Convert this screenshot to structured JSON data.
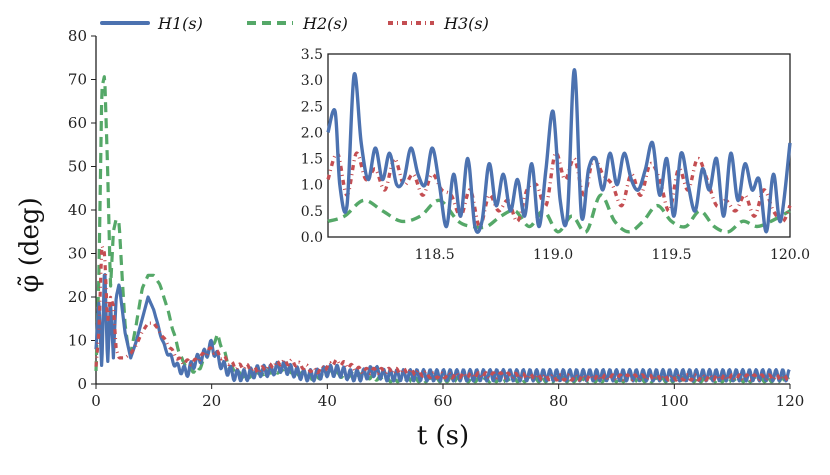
{
  "chart_data": {
    "type": "line",
    "title": "",
    "xlabel": "t (s)",
    "ylabel": "φ̃ (deg)",
    "xlim": [
      0,
      120
    ],
    "ylim": [
      0,
      80
    ],
    "xticks": [
      "0",
      "20",
      "40",
      "60",
      "80",
      "100",
      "120"
    ],
    "yticks": [
      "0",
      "10",
      "20",
      "30",
      "40",
      "50",
      "60",
      "70",
      "80"
    ],
    "legend": {
      "placement": "top",
      "entries": [
        "H1(s)",
        "H2(s)",
        "H3(s)"
      ]
    },
    "series": [
      {
        "name": "H1(s)",
        "color": "#4c72b0",
        "style": "solid",
        "x": [
          0,
          0.5,
          1,
          1.5,
          2,
          2.5,
          3,
          3.5,
          4,
          5,
          6,
          7,
          8,
          9,
          10,
          11,
          12,
          13,
          14,
          15,
          16,
          17,
          18,
          19,
          20,
          21,
          22,
          23,
          24,
          25,
          26,
          28,
          30,
          32,
          34,
          36,
          38,
          40,
          42,
          44,
          46,
          48,
          50,
          55,
          60,
          65,
          70,
          80,
          90,
          100,
          110,
          120
        ],
        "y": [
          8,
          19,
          3,
          28,
          4,
          19,
          6,
          20,
          23,
          12,
          6,
          10,
          15,
          20,
          17,
          12,
          8,
          6,
          4,
          3,
          3,
          5,
          6,
          7,
          9,
          6,
          4,
          3,
          2,
          2,
          2,
          3,
          3,
          4,
          3,
          2,
          2,
          3,
          3,
          2,
          2,
          3,
          2,
          2,
          2,
          2,
          2,
          2,
          2,
          2,
          2,
          2
        ],
        "oscillation_amplitude": 1.3
      },
      {
        "name": "H2(s)",
        "color": "#55a868",
        "style": "dashed",
        "x": [
          0,
          0.5,
          1,
          1.5,
          2,
          2.5,
          3,
          3.5,
          4,
          4.5,
          5,
          5.5,
          6,
          7,
          8,
          9,
          10,
          11,
          12,
          13,
          14,
          15,
          16,
          17,
          18,
          19,
          20,
          21,
          22,
          23,
          25,
          27,
          30,
          32,
          34,
          36,
          38,
          40,
          42,
          44,
          46,
          50,
          55,
          60,
          70,
          80,
          90,
          100,
          110,
          120
        ],
        "y": [
          3,
          25,
          68,
          71,
          50,
          22,
          35,
          38,
          37,
          25,
          14,
          9,
          7,
          14,
          22,
          25,
          25,
          23,
          19,
          14,
          9,
          5,
          4,
          3,
          4,
          6,
          9,
          11,
          8,
          4,
          2,
          2,
          3,
          3,
          3,
          2,
          1,
          3,
          2,
          2,
          2,
          1,
          1,
          1,
          1,
          1,
          1,
          1,
          1,
          1
        ],
        "oscillation_amplitude": 0.5
      },
      {
        "name": "H3(s)",
        "color": "#c44e52",
        "style": "dotted",
        "x": [
          0,
          0.5,
          1,
          1.5,
          2,
          2.5,
          3,
          3.5,
          4,
          5,
          6,
          7,
          8,
          9,
          10,
          11,
          12,
          13,
          14,
          15,
          16,
          17,
          18,
          19,
          20,
          21,
          22,
          23,
          24,
          26,
          28,
          30,
          32,
          34,
          36,
          38,
          40,
          41,
          42,
          44,
          46,
          50,
          54,
          58,
          62,
          70,
          80,
          90,
          100,
          110,
          120
        ],
        "y": [
          4,
          12,
          32,
          30,
          14,
          20,
          18,
          8,
          6,
          6,
          7,
          9,
          12,
          14,
          14,
          12,
          10,
          8,
          6,
          5,
          5,
          5,
          6,
          7,
          8,
          7,
          6,
          5,
          4,
          4,
          3,
          4,
          5,
          5,
          4,
          3,
          4,
          5,
          5,
          4,
          3,
          3,
          3,
          2,
          2,
          2,
          1.5,
          1.5,
          1.5,
          1.5,
          1.5
        ],
        "oscillation_amplitude": 0.6
      }
    ],
    "inset": {
      "type": "line",
      "xlim": [
        118.05,
        120.0
      ],
      "ylim": [
        0,
        3.5
      ],
      "xticks": [
        "118.5",
        "119.0",
        "119.5",
        "120.0"
      ],
      "yticks": [
        "0.0",
        "0.5",
        "1.0",
        "1.5",
        "2.0",
        "2.5",
        "3.0",
        "3.5"
      ],
      "series": [
        {
          "name": "H1(s)",
          "x": [
            118.05,
            118.08,
            118.1,
            118.13,
            118.16,
            118.19,
            118.22,
            118.25,
            118.28,
            118.31,
            118.34,
            118.37,
            118.4,
            118.43,
            118.46,
            118.49,
            118.52,
            118.55,
            118.58,
            118.61,
            118.64,
            118.67,
            118.7,
            118.73,
            118.76,
            118.79,
            118.82,
            118.85,
            118.88,
            118.91,
            118.94,
            118.97,
            119.0,
            119.03,
            119.06,
            119.09,
            119.12,
            119.15,
            119.18,
            119.21,
            119.24,
            119.27,
            119.3,
            119.33,
            119.36,
            119.39,
            119.42,
            119.45,
            119.48,
            119.51,
            119.54,
            119.57,
            119.6,
            119.63,
            119.66,
            119.69,
            119.72,
            119.75,
            119.78,
            119.81,
            119.84,
            119.87,
            119.9,
            119.93,
            119.96,
            120.0
          ],
          "y": [
            2.0,
            2.4,
            1.0,
            0.6,
            3.1,
            1.8,
            1.1,
            1.7,
            1.1,
            1.6,
            1.0,
            1.1,
            1.7,
            1.2,
            1.0,
            1.7,
            1.0,
            0.2,
            1.2,
            0.4,
            1.5,
            0.2,
            0.3,
            1.4,
            0.6,
            1.2,
            0.5,
            1.1,
            0.4,
            1.4,
            0.2,
            1.3,
            2.4,
            0.7,
            0.4,
            3.2,
            0.4,
            1.3,
            1.5,
            0.9,
            1.6,
            1.0,
            1.6,
            1.1,
            0.9,
            1.3,
            1.8,
            0.8,
            1.5,
            0.4,
            1.6,
            1.0,
            0.5,
            1.3,
            0.9,
            1.5,
            0.4,
            1.6,
            0.7,
            1.4,
            0.9,
            1.1,
            0.1,
            1.2,
            0.3,
            1.8
          ]
        },
        {
          "name": "H2(s)",
          "x": [
            118.05,
            118.12,
            118.2,
            118.28,
            118.36,
            118.44,
            118.52,
            118.6,
            118.66,
            118.72,
            118.78,
            118.84,
            118.9,
            118.96,
            119.02,
            119.08,
            119.14,
            119.2,
            119.26,
            119.32,
            119.38,
            119.44,
            119.5,
            119.56,
            119.62,
            119.68,
            119.74,
            119.8,
            119.86,
            119.92,
            120.0
          ],
          "y": [
            0.3,
            0.4,
            0.7,
            0.5,
            0.3,
            0.4,
            0.7,
            0.3,
            0.2,
            0.2,
            0.4,
            0.5,
            0.2,
            0.5,
            0.1,
            0.4,
            0.1,
            0.8,
            0.3,
            0.1,
            0.3,
            0.6,
            0.3,
            0.2,
            0.5,
            0.2,
            0.1,
            0.3,
            0.2,
            0.3,
            0.5
          ]
        },
        {
          "name": "H3(s)",
          "x": [
            118.05,
            118.09,
            118.13,
            118.17,
            118.21,
            118.25,
            118.29,
            118.33,
            118.37,
            118.41,
            118.45,
            118.49,
            118.53,
            118.57,
            118.61,
            118.65,
            118.69,
            118.73,
            118.77,
            118.81,
            118.85,
            118.89,
            118.93,
            118.97,
            119.01,
            119.05,
            119.09,
            119.13,
            119.17,
            119.21,
            119.25,
            119.29,
            119.33,
            119.37,
            119.41,
            119.45,
            119.49,
            119.53,
            119.57,
            119.61,
            119.65,
            119.69,
            119.73,
            119.77,
            119.81,
            119.85,
            119.89,
            119.93,
            119.97,
            120.0
          ],
          "y": [
            1.1,
            1.6,
            0.8,
            1.6,
            1.1,
            1.3,
            0.9,
            1.5,
            1.0,
            1.2,
            0.8,
            1.2,
            0.9,
            0.8,
            0.4,
            0.9,
            0.2,
            0.8,
            0.5,
            0.7,
            0.3,
            0.9,
            1.0,
            0.6,
            1.6,
            1.1,
            1.5,
            0.8,
            1.5,
            1.2,
            1.0,
            0.6,
            1.2,
            0.8,
            1.4,
            1.1,
            0.5,
            1.3,
            0.9,
            1.5,
            1.1,
            0.6,
            0.7,
            0.5,
            0.8,
            0.4,
            0.9,
            0.5,
            0.3,
            0.6
          ]
        }
      ]
    }
  }
}
